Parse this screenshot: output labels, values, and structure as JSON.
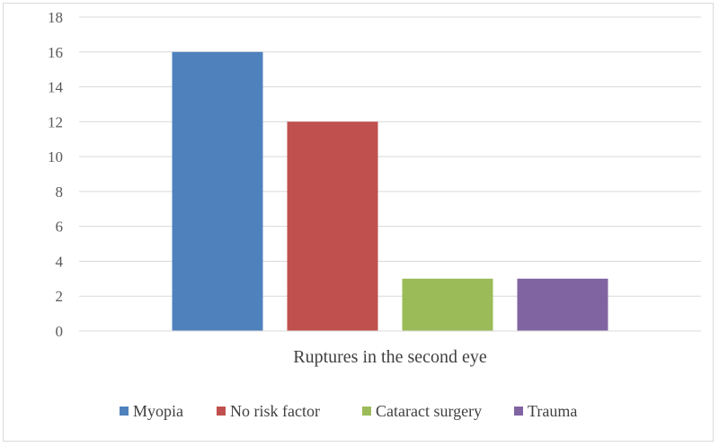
{
  "chart_data": {
    "type": "bar",
    "categories": [
      "Ruptures in the second eye"
    ],
    "series": [
      {
        "name": "Myopia",
        "values": [
          16
        ],
        "color": "#4f81bd"
      },
      {
        "name": "No risk factor",
        "values": [
          12
        ],
        "color": "#c0504d"
      },
      {
        "name": "Cataract surgery",
        "values": [
          3
        ],
        "color": "#9bbb59"
      },
      {
        "name": "Trauma",
        "values": [
          3
        ],
        "color": "#8064a2"
      }
    ],
    "ylim": [
      0,
      18
    ],
    "yticks": [
      0,
      2,
      4,
      6,
      8,
      10,
      12,
      14,
      16,
      18
    ],
    "grid": true,
    "legend_position": "bottom"
  }
}
